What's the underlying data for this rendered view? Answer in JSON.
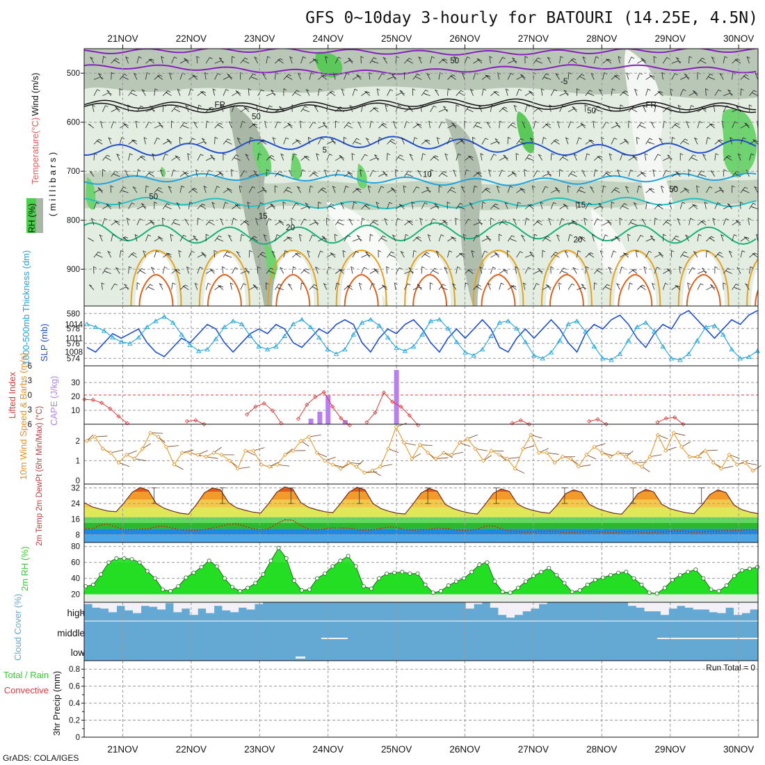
{
  "title": "GFS 0~10day 3-hourly for BATOURI (14.25E, 4.5N)",
  "dates": [
    "21NOV",
    "22NOV",
    "23NOV",
    "24NOV",
    "25NOV",
    "26NOV",
    "27NOV",
    "28NOV",
    "29NOV",
    "30NOV"
  ],
  "footer": "GrADS: COLA/IGES",
  "colors": {
    "purple": "#8a1fbf",
    "black": "#111111",
    "blue": "#1f4fd0",
    "lightblue": "#20a4dd",
    "cyan": "#1fc1c1",
    "green": "#1ab07a",
    "orange": "#e8a020",
    "darkorange": "#e0601a",
    "cape": "#b77ff0",
    "li": "#e03a3a",
    "wind10": "#e8901a",
    "rh": "#2ed02e",
    "cloud": "#64a9d4"
  },
  "chart_data": [
    {
      "type": "heatmap",
      "name": "upper-air cross-section",
      "ylabel_parts": [
        "Temperature",
        "(°C)",
        "Wind",
        "(m/s)"
      ],
      "ylabel_sub": "( m i l l i b a r s )",
      "legend_rh": "RH (%)",
      "yticks": [
        "500",
        "600",
        "700",
        "800",
        "900"
      ],
      "ylim": [
        975,
        450
      ],
      "contour_labels": [
        {
          "text": "-5",
          "level": -5,
          "x_day": 6.45,
          "p": 515
        },
        {
          "text": "FR",
          "level": 0,
          "x_day": 1.42,
          "p": 563
        },
        {
          "text": "FR",
          "level": 0,
          "x_day": 7.72,
          "p": 563
        },
        {
          "text": "5",
          "level": 5,
          "x_day": 2.95,
          "p": 655
        },
        {
          "text": "10",
          "level": 10,
          "x_day": 4.45,
          "p": 705
        },
        {
          "text": "15",
          "level": 15,
          "x_day": 2.05,
          "p": 790
        },
        {
          "text": "15",
          "level": 15,
          "x_day": 6.7,
          "p": 767
        },
        {
          "text": "20",
          "level": 20,
          "x_day": 2.45,
          "p": 813
        },
        {
          "text": "20",
          "level": 20,
          "x_day": 6.65,
          "p": 838
        },
        {
          "text": "50",
          "level": 50,
          "x_day": 4.85,
          "p": 473
        },
        {
          "text": "50",
          "level": 50,
          "x_day": 1.95,
          "p": 587
        },
        {
          "text": "50",
          "level": 50,
          "x_day": 6.85,
          "p": 575
        },
        {
          "text": "50",
          "level": 50,
          "x_day": 8.05,
          "p": 735
        },
        {
          "text": "50",
          "level": 50,
          "x_day": 0.45,
          "p": 750
        }
      ]
    },
    {
      "type": "line",
      "name": "thickness and slp",
      "ylabel_left": "1000-500mb Thickness (dm)",
      "ylabel_right": "SLP (mb)",
      "left_ticks": [
        "580",
        "578",
        "576",
        "574"
      ],
      "right_ticks": [
        "1014",
        "1011",
        "1008"
      ],
      "series": [
        {
          "name": "SLP (mb)",
          "values": [
            1009,
            1008,
            1010,
            1012,
            1011,
            1012,
            1013,
            1010,
            1008,
            1007,
            1009,
            1011,
            1010,
            1012,
            1014,
            1013,
            1010,
            1008,
            1010,
            1012,
            1013,
            1012,
            1014,
            1013,
            1010,
            1009,
            1011,
            1013,
            1012,
            1014,
            1015,
            1014,
            1010,
            1008,
            1011,
            1013,
            1012,
            1014,
            1015,
            1013,
            1010,
            1008,
            1011,
            1013,
            1011,
            1013,
            1015,
            1013,
            1009,
            1008,
            1011,
            1013,
            1011,
            1013,
            1015,
            1013,
            1010,
            1008,
            1012,
            1014,
            1013,
            1015,
            1016,
            1014,
            1011,
            1009,
            1012,
            1014,
            1013,
            1016,
            1017,
            1015,
            1013,
            1011,
            1013,
            1015,
            1014,
            1016,
            1017
          ]
        },
        {
          "name": "Thickness (dm)",
          "values": [
            578.6,
            578.2,
            577.7,
            576.8,
            576.2,
            576.0,
            576.8,
            578.2,
            579.0,
            579.6,
            578.8,
            577.2,
            575.8,
            575.0,
            575.2,
            576.6,
            578.2,
            579.0,
            578.6,
            577.0,
            575.6,
            575.2,
            575.6,
            577.0,
            578.6,
            579.2,
            578.2,
            576.8,
            575.2,
            574.6,
            575.2,
            577.2,
            578.8,
            579.2,
            578.4,
            576.8,
            575.4,
            575.0,
            575.6,
            577.2,
            579.0,
            579.2,
            578.0,
            576.2,
            574.8,
            574.4,
            575.2,
            577.0,
            578.8,
            579.0,
            578.0,
            576.2,
            574.4,
            574.0,
            574.8,
            576.4,
            578.6,
            579.0,
            577.6,
            575.6,
            574.0,
            573.8,
            574.6,
            576.4,
            578.2,
            578.8,
            577.6,
            575.6,
            574.0,
            573.8,
            574.6,
            576.4,
            578.2,
            578.4,
            577.2,
            575.2,
            574.0,
            574.2,
            575.0
          ]
        }
      ]
    },
    {
      "type": "bar",
      "name": "lifted index and cape",
      "ylabel_left": "Lifted Index",
      "ylabel_right": "CAPE (J/kg)",
      "left_ticks": [
        "-6",
        "-3",
        "0",
        "3",
        "6"
      ],
      "right_ticks": [
        "30",
        "20",
        "10"
      ],
      "cape": [
        {
          "t": 2.75,
          "v": 4
        },
        {
          "t": 2.88,
          "v": 9
        },
        {
          "t": 3.0,
          "v": 21
        },
        {
          "t": 3.25,
          "v": 3
        },
        {
          "t": 4.0,
          "v": 39
        }
      ],
      "li_segments": [
        [
          [
            0,
            0.9
          ],
          [
            0.125,
            1.0
          ],
          [
            0.25,
            1.6
          ],
          [
            0.375,
            2.8
          ],
          [
            0.5,
            4.4
          ],
          [
            0.625,
            5.8
          ]
        ],
        [
          [
            1.5,
            5.4
          ],
          [
            1.625,
            5.2
          ],
          [
            1.75,
            6.0
          ]
        ],
        [
          [
            2.375,
            4.0
          ],
          [
            2.5,
            2.4
          ],
          [
            2.625,
            1.7
          ],
          [
            2.75,
            3.2
          ],
          [
            2.875,
            5.8
          ]
        ],
        [
          [
            3.125,
            4.9
          ],
          [
            3.25,
            2.0
          ],
          [
            3.375,
            0.4
          ],
          [
            3.5,
            -0.6
          ],
          [
            3.625,
            2.4
          ],
          [
            3.75,
            4.8
          ],
          [
            3.875,
            6.2
          ]
        ],
        [
          [
            4.125,
            5.6
          ],
          [
            4.25,
            3.6
          ],
          [
            4.375,
            -0.5
          ],
          [
            4.5,
            1.4
          ],
          [
            4.625,
            2.4
          ],
          [
            4.75,
            4.2
          ],
          [
            4.875,
            6.2
          ]
        ],
        [
          [
            6.25,
            5.8
          ],
          [
            6.375,
            5.2
          ],
          [
            6.5,
            6.0
          ]
        ],
        [
          [
            7.375,
            5.4
          ],
          [
            7.5,
            5.0
          ],
          [
            7.625,
            6.0
          ]
        ],
        [
          [
            8.375,
            5.6
          ],
          [
            8.5,
            4.8
          ],
          [
            8.625,
            4.6
          ],
          [
            8.75,
            6.0
          ]
        ]
      ]
    },
    {
      "type": "line",
      "name": "10m wind",
      "ylabel": "10m Wind Speed & Barbs (m/s)",
      "yticks": [
        "2",
        "1",
        "0"
      ],
      "ylim": [
        0,
        2.8
      ],
      "values": [
        2.0,
        2.2,
        1.6,
        1.4,
        0.9,
        1.3,
        1.1,
        1.6,
        2.4,
        2.2,
        1.7,
        0.8,
        1.4,
        1.4,
        1.3,
        1.2,
        1.4,
        1.3,
        1.0,
        0.6,
        1.5,
        1.5,
        0.8,
        0.7,
        0.8,
        1.3,
        1.5,
        2.0,
        2.2,
        1.4,
        1.0,
        0.8,
        0.6,
        0.9,
        0.7,
        0.4,
        0.5,
        0.7,
        1.6,
        2.7,
        1.9,
        1.1,
        1.8,
        1.4,
        1.1,
        1.4,
        1.3,
        1.9,
        2.1,
        1.6,
        1.0,
        1.5,
        1.3,
        1.1,
        0.6,
        1.6,
        2.3,
        1.4,
        1.4,
        0.9,
        1.2,
        1.1,
        0.7,
        1.3,
        1.7,
        1.4,
        1.2,
        1.4,
        1.2,
        0.9,
        0.7,
        1.2,
        2.3,
        1.5,
        2.4,
        1.7,
        1.2,
        1.2,
        1.5,
        0.9,
        0.6,
        1.3,
        0.8,
        0.9,
        0.5
      ]
    },
    {
      "type": "area",
      "name": "2m temp and dewpoint",
      "ylabel": "2m Temp 2m DewPt (6hr Min/Max) (°C)",
      "yticks": [
        "32",
        "24",
        "16",
        "8"
      ],
      "ylim": [
        4,
        34
      ],
      "temp": [
        24.5,
        22.3,
        21.1,
        20.1,
        19.8,
        24.5,
        29.8,
        32.2,
        30.7,
        23.9,
        21.5,
        20.1,
        19.0,
        18.5,
        23.5,
        29.5,
        32.0,
        31.0,
        24.5,
        21.8,
        20.6,
        19.6,
        19.1,
        24.0,
        29.8,
        32.5,
        31.4,
        24.5,
        22.0,
        20.8,
        19.8,
        19.3,
        24.2,
        29.7,
        32.3,
        31.0,
        24.0,
        21.4,
        20.0,
        19.0,
        18.6,
        23.8,
        29.4,
        31.7,
        30.4,
        23.6,
        21.4,
        20.1,
        19.1,
        18.6,
        23.6,
        29.2,
        31.5,
        30.2,
        23.8,
        21.6,
        20.4,
        19.5,
        19.0,
        23.4,
        29.0,
        31.0,
        29.8,
        23.5,
        21.4,
        20.1,
        19.0,
        18.5,
        23.2,
        29.0,
        31.2,
        30.0,
        23.6,
        21.4,
        20.2,
        19.3,
        18.8,
        23.2,
        28.6,
        31.0,
        29.6,
        23.2,
        20.8,
        19.6,
        18.8
      ],
      "dewpt": [
        11.2,
        10.8,
        13.0,
        13.4,
        11.8,
        10.6,
        10.5,
        10.9,
        10.9,
        12.2,
        12.4,
        11.4,
        10.5,
        10.4,
        10.2,
        10.7,
        11.4,
        12.4,
        13.4,
        13.6,
        12.4,
        11.0,
        10.4,
        11.0,
        13.6,
        15.6,
        15.4,
        12.8,
        10.8,
        10.4,
        11.0,
        11.6,
        11.4,
        11.4,
        10.6,
        10.2,
        10.5,
        11.2,
        12.0,
        11.6,
        10.6,
        10.3,
        10.5,
        10.8,
        11.4,
        11.2,
        10.6,
        10.2,
        10.4,
        10.8,
        12.4,
        12.6,
        11.0,
        9.8,
        9.6,
        9.2,
        9.4,
        9.6,
        9.8,
        9.6,
        9.0,
        9.2,
        9.4,
        9.8,
        9.4,
        9.2,
        9.1,
        9.4,
        9.6,
        9.4,
        9.0,
        9.2,
        9.4,
        9.8,
        10.0,
        9.6,
        9.2,
        9.4,
        9.6,
        9.8,
        10.0,
        10.2,
        10.4,
        10.6,
        10.4
      ]
    },
    {
      "type": "area",
      "name": "2m RH",
      "ylabel": "2m RH (%)",
      "yticks": [
        "80",
        "60",
        "40",
        "20"
      ],
      "ylim": [
        10,
        85
      ],
      "values": [
        30,
        32,
        45,
        60,
        65,
        65,
        64,
        60,
        49,
        40,
        26,
        24,
        30,
        41,
        47,
        54,
        62,
        55,
        40,
        29,
        24,
        28,
        34,
        45,
        62,
        78,
        65,
        37,
        25,
        26,
        40,
        46,
        55,
        62,
        68,
        55,
        30,
        27,
        40,
        46,
        47,
        48,
        46,
        46,
        32,
        22,
        24,
        31,
        36,
        40,
        48,
        57,
        60,
        36,
        23,
        22,
        28,
        36,
        43,
        48,
        53,
        44,
        34,
        23,
        25,
        32,
        38,
        41,
        44,
        47,
        48,
        40,
        32,
        22,
        21,
        28,
        38,
        44,
        48,
        51,
        40,
        26,
        24,
        31,
        43,
        50,
        52,
        54
      ]
    },
    {
      "type": "bar",
      "name": "cloud cover",
      "ylabel": "Cloud Cover (%)",
      "levels": [
        "high",
        "middle",
        "low"
      ],
      "high_clear": [
        0.1,
        0.3,
        0.35,
        0.55,
        0.2,
        0.45,
        0.6,
        0.2,
        0.25,
        0.4,
        0.05,
        0.55,
        0.35,
        0.7,
        0.35,
        0.6,
        0.2,
        0.45,
        0.55,
        0.3,
        0.4,
        0.1,
        0.0,
        0,
        0,
        0,
        0,
        0,
        0,
        0,
        0,
        0,
        0,
        0,
        0,
        0,
        0,
        0,
        0,
        0,
        0,
        0,
        0,
        0,
        0,
        0,
        0,
        0.35,
        0.1,
        0,
        0.3,
        0.7,
        0.85,
        0.7,
        0.5,
        0.35,
        0.1,
        0,
        0,
        0,
        0,
        0,
        0,
        0,
        0,
        0,
        0,
        0.2,
        0.3,
        0.5,
        0.5,
        0.7,
        0.35,
        0.2,
        0.3,
        0.4,
        0.4,
        0.55,
        0.6,
        0.3,
        0.7,
        0.6,
        0.4
      ]
    },
    {
      "type": "bar",
      "name": "3hr precip",
      "ylabel_parts": [
        "Total / Rain",
        "Convective",
        "3hr Precip (mm)"
      ],
      "yticks": [
        "0.8",
        "0.6",
        "0.4",
        "0.2",
        "0"
      ],
      "ylim": [
        0,
        0.9
      ],
      "run_total": "Run Total = 0",
      "values": []
    }
  ]
}
